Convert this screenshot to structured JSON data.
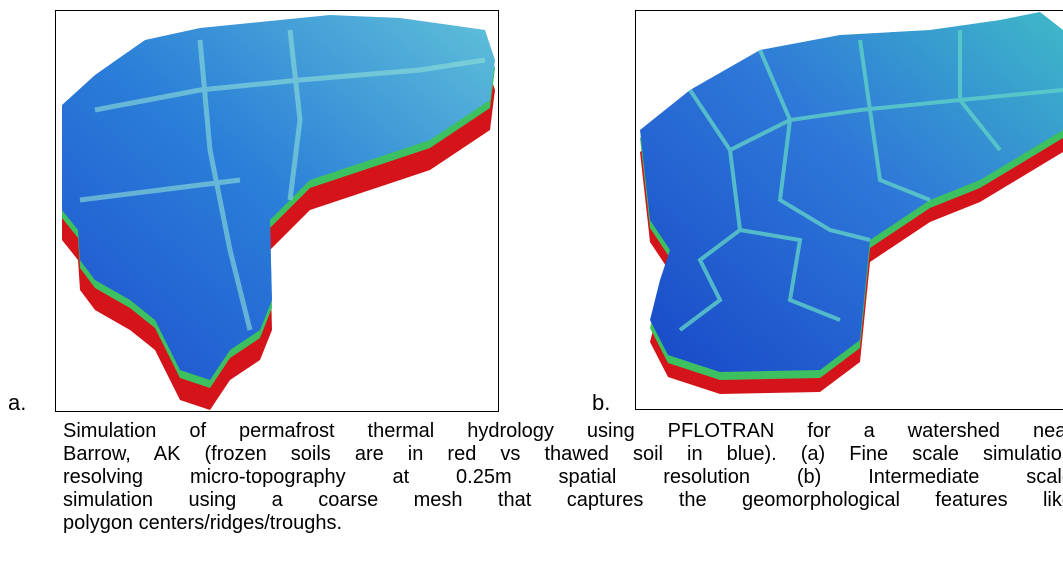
{
  "figure": {
    "panels": [
      {
        "label": "a."
      },
      {
        "label": "b."
      }
    ],
    "caption": {
      "lines": [
        "Simulation of permafrost thermal hydrology using PFLOTRAN for a watershed near",
        "Barrow, AK (frozen soils are in red vs thawed soil in blue). (a) Fine scale simulation",
        "resolving micro-topography at 0.25m spatial resolution (b) Intermediate scale",
        "simulation using a coarse mesh that captures the geomorphological features like",
        "polygon centers/ridges/troughs."
      ]
    }
  }
}
